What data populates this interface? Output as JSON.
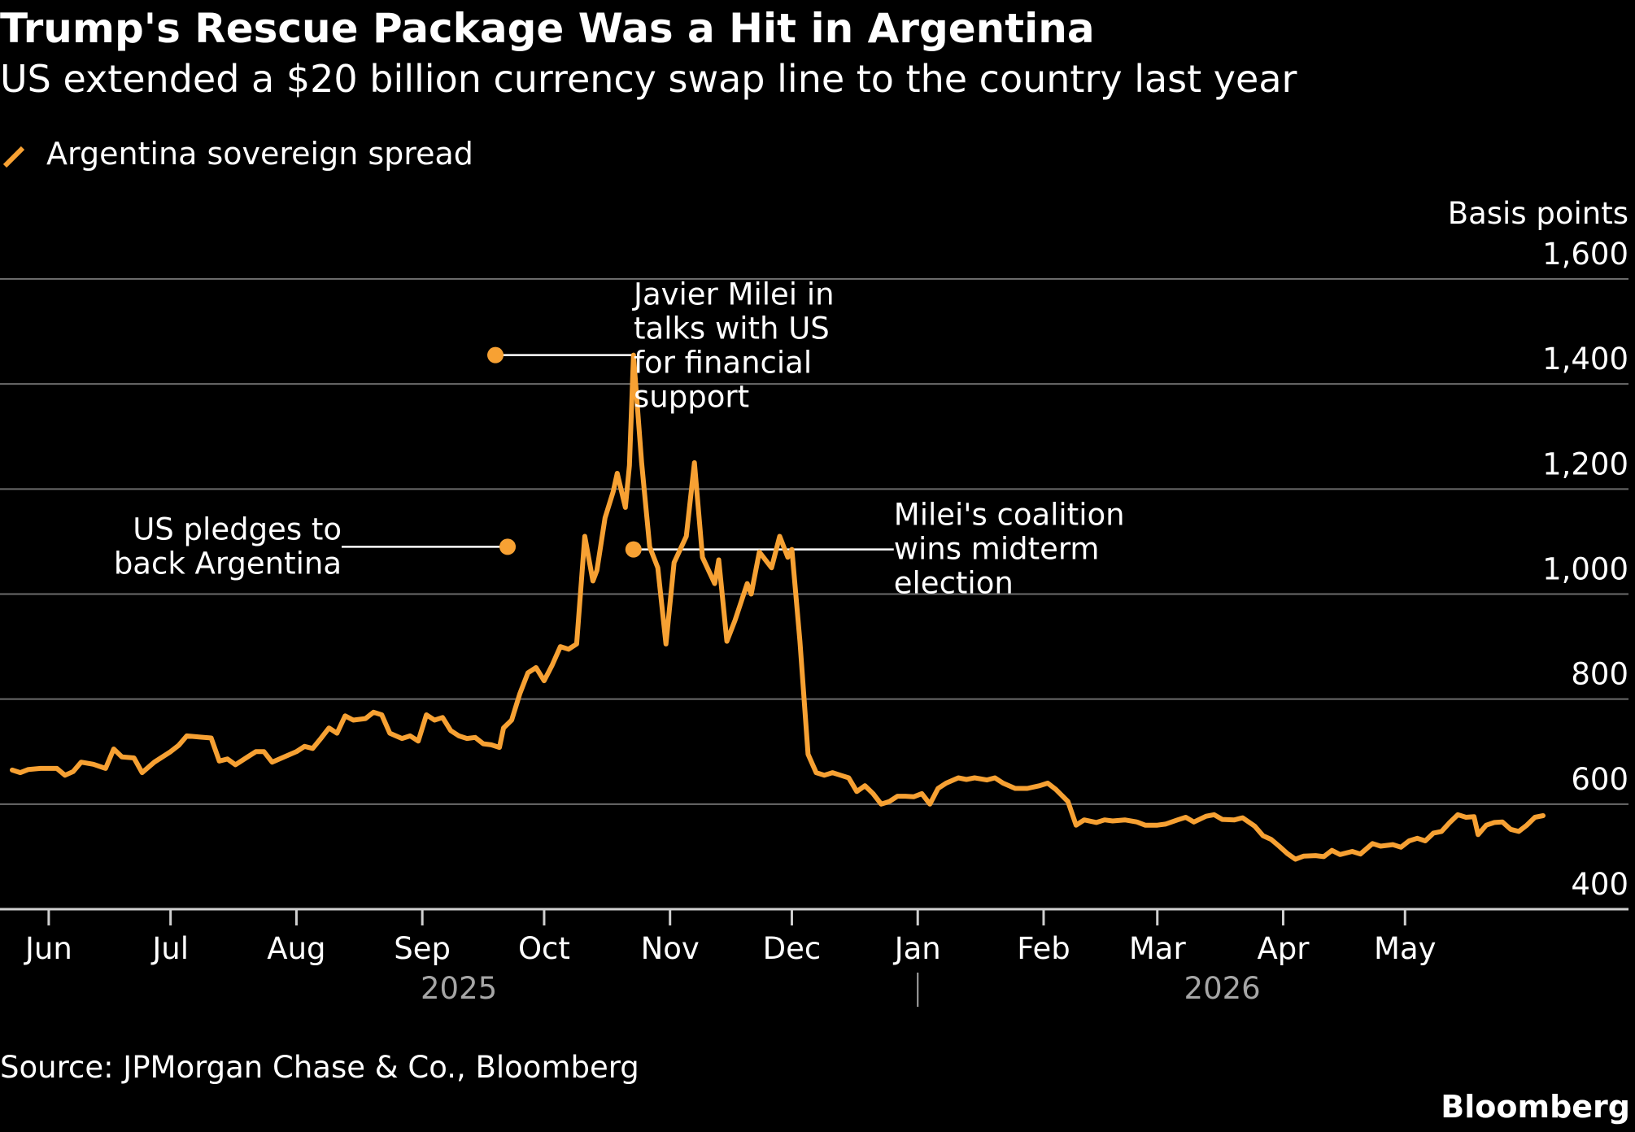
{
  "chart_data": {
    "type": "line",
    "title": "Trump's Rescue Package Was a Hit in Argentina",
    "subtitle": "US extended a $20 billion currency swap line to the country last year",
    "ylabel": "Basis points",
    "ylim": [
      400,
      1600
    ],
    "yticks": [
      {
        "value": 400,
        "label": "400"
      },
      {
        "value": 600,
        "label": "600"
      },
      {
        "value": 800,
        "label": "800"
      },
      {
        "value": 1000,
        "label": "1,000"
      },
      {
        "value": 1200,
        "label": "1,200"
      },
      {
        "value": 1400,
        "label": "1,400"
      },
      {
        "value": 1600,
        "label": "1,600"
      }
    ],
    "xlim": [
      "2025-05-20",
      "2026-06-05"
    ],
    "xticks": [
      {
        "date": "2025-06-01",
        "label": "Jun"
      },
      {
        "date": "2025-07-01",
        "label": "Jul"
      },
      {
        "date": "2025-08-01",
        "label": "Aug"
      },
      {
        "date": "2025-09-01",
        "label": "Sep"
      },
      {
        "date": "2025-10-01",
        "label": "Oct"
      },
      {
        "date": "2025-11-01",
        "label": "Nov"
      },
      {
        "date": "2025-12-01",
        "label": "Dec"
      },
      {
        "date": "2026-01-01",
        "label": "Jan"
      },
      {
        "date": "2026-02-01",
        "label": "Feb"
      },
      {
        "date": "2026-03-01",
        "label": "Mar"
      },
      {
        "date": "2026-04-01",
        "label": "Apr"
      },
      {
        "date": "2026-05-01",
        "label": "May"
      }
    ],
    "year_labels": [
      {
        "date": "2025-09-10",
        "label": "2025"
      },
      {
        "date": "2026-03-17",
        "label": "2026"
      }
    ],
    "year_divider": "2026-01-01",
    "grid": true,
    "legend_position": "top-left",
    "series": [
      {
        "name": "Argentina sovereign spread",
        "color": "#f7a133",
        "points": [
          [
            "2025-05-23",
            665
          ],
          [
            "2025-05-25",
            660
          ],
          [
            "2025-05-27",
            666
          ],
          [
            "2025-05-30",
            668
          ],
          [
            "2025-06-03",
            668
          ],
          [
            "2025-06-05",
            655
          ],
          [
            "2025-06-07",
            662
          ],
          [
            "2025-06-09",
            680
          ],
          [
            "2025-06-12",
            676
          ],
          [
            "2025-06-15",
            668
          ],
          [
            "2025-06-17",
            705
          ],
          [
            "2025-06-19",
            690
          ],
          [
            "2025-06-22",
            688
          ],
          [
            "2025-06-24",
            660
          ],
          [
            "2025-06-27",
            680
          ],
          [
            "2025-07-01",
            700
          ],
          [
            "2025-07-03",
            712
          ],
          [
            "2025-07-05",
            730
          ],
          [
            "2025-07-08",
            728
          ],
          [
            "2025-07-11",
            726
          ],
          [
            "2025-07-13",
            682
          ],
          [
            "2025-07-15",
            686
          ],
          [
            "2025-07-17",
            675
          ],
          [
            "2025-07-20",
            690
          ],
          [
            "2025-07-22",
            700
          ],
          [
            "2025-07-24",
            700
          ],
          [
            "2025-07-26",
            680
          ],
          [
            "2025-07-29",
            690
          ],
          [
            "2025-08-01",
            700
          ],
          [
            "2025-08-03",
            710
          ],
          [
            "2025-08-05",
            706
          ],
          [
            "2025-08-07",
            725
          ],
          [
            "2025-08-09",
            745
          ],
          [
            "2025-08-11",
            735
          ],
          [
            "2025-08-13",
            768
          ],
          [
            "2025-08-15",
            760
          ],
          [
            "2025-08-18",
            763
          ],
          [
            "2025-08-20",
            775
          ],
          [
            "2025-08-22",
            770
          ],
          [
            "2025-08-24",
            735
          ],
          [
            "2025-08-27",
            725
          ],
          [
            "2025-08-29",
            730
          ],
          [
            "2025-08-31",
            720
          ],
          [
            "2025-09-02",
            770
          ],
          [
            "2025-09-04",
            760
          ],
          [
            "2025-09-06",
            765
          ],
          [
            "2025-09-08",
            740
          ],
          [
            "2025-09-10",
            730
          ],
          [
            "2025-09-12",
            725
          ],
          [
            "2025-09-14",
            727
          ],
          [
            "2025-09-16",
            715
          ],
          [
            "2025-09-18",
            713
          ],
          [
            "2025-09-20",
            708
          ],
          [
            "2025-09-21",
            745
          ],
          [
            "2025-09-23",
            760
          ],
          [
            "2025-09-25",
            810
          ],
          [
            "2025-09-27",
            850
          ],
          [
            "2025-09-29",
            860
          ],
          [
            "2025-10-01",
            835
          ],
          [
            "2025-10-03",
            865
          ],
          [
            "2025-10-05",
            900
          ],
          [
            "2025-10-07",
            895
          ],
          [
            "2025-10-09",
            905
          ],
          [
            "2025-10-11",
            1110
          ],
          [
            "2025-10-13",
            1025
          ],
          [
            "2025-10-14",
            1045
          ],
          [
            "2025-10-16",
            1145
          ],
          [
            "2025-10-18",
            1195
          ],
          [
            "2025-10-19",
            1230
          ],
          [
            "2025-10-21",
            1165
          ],
          [
            "2025-10-22",
            1245
          ],
          [
            "2025-10-23",
            1455
          ],
          [
            "2025-10-25",
            1250
          ],
          [
            "2025-10-27",
            1090
          ],
          [
            "2025-10-29",
            1050
          ],
          [
            "2025-10-31",
            905
          ],
          [
            "2025-11-02",
            1060
          ],
          [
            "2025-11-05",
            1110
          ],
          [
            "2025-11-07",
            1250
          ],
          [
            "2025-11-09",
            1070
          ],
          [
            "2025-11-12",
            1020
          ],
          [
            "2025-11-13",
            1065
          ],
          [
            "2025-11-15",
            910
          ],
          [
            "2025-11-17",
            950
          ],
          [
            "2025-11-20",
            1020
          ],
          [
            "2025-11-21",
            1000
          ],
          [
            "2025-11-23",
            1080
          ],
          [
            "2025-11-26",
            1050
          ],
          [
            "2025-11-28",
            1110
          ],
          [
            "2025-11-30",
            1070
          ],
          [
            "2025-12-01",
            1085
          ],
          [
            "2025-12-03",
            910
          ],
          [
            "2025-12-05",
            695
          ],
          [
            "2025-12-07",
            660
          ],
          [
            "2025-12-09",
            655
          ],
          [
            "2025-12-11",
            660
          ],
          [
            "2025-12-13",
            655
          ],
          [
            "2025-12-15",
            650
          ],
          [
            "2025-12-17",
            624
          ],
          [
            "2025-12-19",
            635
          ],
          [
            "2025-12-21",
            620
          ],
          [
            "2025-12-23",
            600
          ],
          [
            "2025-12-25",
            605
          ],
          [
            "2025-12-27",
            615
          ],
          [
            "2025-12-29",
            615
          ],
          [
            "2025-12-31",
            614
          ],
          [
            "2026-01-02",
            620
          ],
          [
            "2026-01-04",
            600
          ],
          [
            "2026-01-06",
            630
          ],
          [
            "2026-01-08",
            640
          ],
          [
            "2026-01-11",
            650
          ],
          [
            "2026-01-13",
            647
          ],
          [
            "2026-01-15",
            650
          ],
          [
            "2026-01-18",
            646
          ],
          [
            "2026-01-20",
            650
          ],
          [
            "2026-01-22",
            640
          ],
          [
            "2026-01-25",
            630
          ],
          [
            "2026-01-28",
            630
          ],
          [
            "2026-01-31",
            635
          ],
          [
            "2026-02-02",
            640
          ],
          [
            "2026-02-04",
            628
          ],
          [
            "2026-02-07",
            605
          ],
          [
            "2026-02-09",
            560
          ],
          [
            "2026-02-11",
            570
          ],
          [
            "2026-02-14",
            565
          ],
          [
            "2026-02-16",
            570
          ],
          [
            "2026-02-18",
            568
          ],
          [
            "2026-02-21",
            570
          ],
          [
            "2026-02-24",
            566
          ],
          [
            "2026-02-26",
            560
          ],
          [
            "2026-03-01",
            560
          ],
          [
            "2026-03-03",
            562
          ],
          [
            "2026-03-06",
            570
          ],
          [
            "2026-03-08",
            575
          ],
          [
            "2026-03-10",
            566
          ],
          [
            "2026-03-13",
            577
          ],
          [
            "2026-03-15",
            580
          ],
          [
            "2026-03-17",
            571
          ],
          [
            "2026-03-20",
            570
          ],
          [
            "2026-03-22",
            574
          ],
          [
            "2026-03-25",
            558
          ],
          [
            "2026-03-27",
            540
          ],
          [
            "2026-03-29",
            533
          ],
          [
            "2026-03-31",
            520
          ],
          [
            "2026-04-02",
            506
          ],
          [
            "2026-04-04",
            495
          ],
          [
            "2026-04-06",
            501
          ],
          [
            "2026-04-09",
            502
          ],
          [
            "2026-04-11",
            500
          ],
          [
            "2026-04-13",
            512
          ],
          [
            "2026-04-15",
            504
          ],
          [
            "2026-04-18",
            510
          ],
          [
            "2026-04-20",
            505
          ],
          [
            "2026-04-23",
            525
          ],
          [
            "2026-04-25",
            520
          ],
          [
            "2026-04-28",
            523
          ],
          [
            "2026-04-30",
            518
          ],
          [
            "2026-05-02",
            530
          ],
          [
            "2026-05-04",
            535
          ],
          [
            "2026-05-06",
            530
          ],
          [
            "2026-05-08",
            545
          ],
          [
            "2026-05-10",
            548
          ],
          [
            "2026-05-12",
            565
          ],
          [
            "2026-05-14",
            580
          ],
          [
            "2026-05-16",
            575
          ],
          [
            "2026-05-18",
            576
          ],
          [
            "2026-05-19",
            542
          ],
          [
            "2026-05-21",
            560
          ],
          [
            "2026-05-23",
            565
          ],
          [
            "2026-05-25",
            566
          ],
          [
            "2026-05-27",
            552
          ],
          [
            "2026-05-29",
            548
          ],
          [
            "2026-05-31",
            560
          ],
          [
            "2026-06-02",
            575
          ],
          [
            "2026-06-04",
            578
          ]
        ]
      }
    ],
    "annotations": [
      {
        "lines": [
          "US pledges to",
          "back Argentina"
        ],
        "point": [
          "2025-09-22",
          1090
        ],
        "side": "left"
      },
      {
        "lines": [
          "Javier Milei in",
          "talks with US",
          "for financial",
          "support"
        ],
        "point": [
          "2025-09-19",
          1455
        ],
        "side": "right"
      },
      {
        "lines": [
          "Milei's coalition",
          "wins midterm",
          "election"
        ],
        "point": [
          "2025-10-23",
          1085
        ],
        "side": "right"
      }
    ]
  },
  "footer": {
    "source": "Source: JPMorgan Chase & Co., Bloomberg",
    "brand": "Bloomberg"
  }
}
